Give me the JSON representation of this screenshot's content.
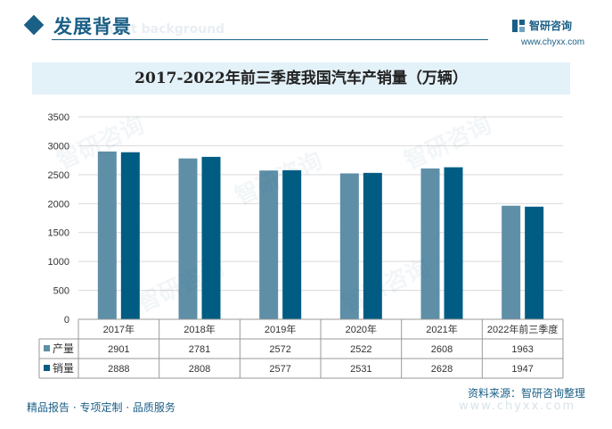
{
  "header": {
    "section_title": "发展背景",
    "section_subtitle": "ment background",
    "logo_text": "智研咨询",
    "logo_url": "www.chyxx.com"
  },
  "colors": {
    "production": "#5e8fa7",
    "sales": "#005c82",
    "brand": "#1a5f86"
  },
  "chart_data": {
    "type": "bar",
    "title": "2017-2022年前三季度我国汽车产销量（万辆）",
    "categories": [
      "2017年",
      "2018年",
      "2019年",
      "2020年",
      "2021年",
      "2022年前三季度"
    ],
    "series": [
      {
        "name": "产量",
        "values": [
          2901,
          2781,
          2572,
          2522,
          2608,
          1963
        ]
      },
      {
        "name": "销量",
        "values": [
          2888,
          2808,
          2577,
          2531,
          2628,
          1947
        ]
      }
    ],
    "ylim": [
      0,
      3500
    ],
    "yticks": [
      0,
      500,
      1000,
      1500,
      2000,
      2500,
      3000,
      3500
    ],
    "grid": true,
    "legend": "data-table"
  },
  "footer": {
    "left": "精品报告 · 专项定制 · 品质服务",
    "source": "资料来源：智研咨询整理",
    "watermark_url": "www.chyxx.com"
  }
}
